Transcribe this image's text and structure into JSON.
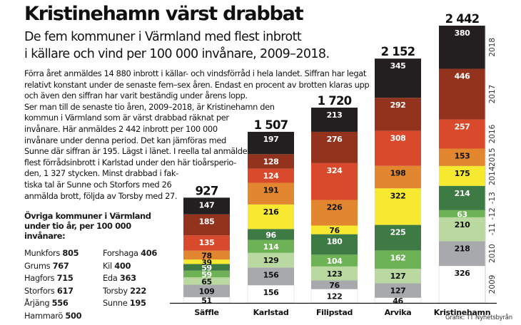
{
  "header": {
    "title": "Kristinehamn värst drabbat",
    "subtitle_lines": [
      "De fem kommuner i Värmland med flest inbrott",
      "i källare och vind per 100 000 invånare, 2009–2018."
    ]
  },
  "body_lines": [
    "Förra året anmäldes 14 880 inbrott i källar- och vindsförråd i hela landet. Siffran har legat",
    "relativt konstant under de senaste fem–sex åren. Endast en procent av brotten klaras upp",
    "och även den siffran har varit beständig under årens lopp.",
    "Ser man till de senaste tio åren, 2009–2018, är Kristinehamn den",
    "kommun i Värmland som är värst drabbad räknat per",
    "invånare. Här anmäldes 2 442 inbrott per 100 000",
    "invånare under denna period. Det kan jämföras med",
    "Sunne där siffran är 195. Lägst i länet. I reella tal anmäldes",
    "flest förrådsinbrott i Karlstad under den här tioårsperio-",
    "den, 1 327 stycken. Minst drabbad i fak-",
    "tiska tal är Sunne och Storfors med 26",
    "anmälda brott, följda av Torsby med 27."
  ],
  "others": {
    "title_lines": [
      "Övriga kommuner i Värmland",
      "under tio år, per 100 000 invånare:"
    ],
    "items": [
      {
        "name": "Munkfors",
        "value": "805"
      },
      {
        "name": "Grums",
        "value": "767"
      },
      {
        "name": "Hagfors",
        "value": "715"
      },
      {
        "name": "Storfors",
        "value": "617"
      },
      {
        "name": "Årjäng",
        "value": "556"
      },
      {
        "name": "Hammarö",
        "value": "500"
      },
      {
        "name": "Forshaga",
        "value": "406"
      },
      {
        "name": "Kil",
        "value": "400"
      },
      {
        "name": "Eda",
        "value": "363"
      },
      {
        "name": "Torsby",
        "value": "222"
      },
      {
        "name": "Sunne",
        "value": "195"
      }
    ]
  },
  "source": "Grafik: TT Nyhetsbyrån",
  "chart_data": {
    "type": "bar",
    "stacked": true,
    "title": "Kristinehamn värst drabbat",
    "ylabel": "Inbrott i källare och vind per 100 000 invånare",
    "categories": [
      "Säffle",
      "Karlstad",
      "Filipstad",
      "Arvika",
      "Kristinehamn"
    ],
    "totals": [
      "927",
      "1 507",
      "1 720",
      "2 152",
      "2 442"
    ],
    "series": [
      {
        "name": "2009",
        "axis_label": "2009",
        "color": "#ffffff",
        "label_color": "#111111",
        "values": [
          51,
          156,
          122,
          46,
          326
        ]
      },
      {
        "name": "2010",
        "axis_label": "2010",
        "color": "#a7a9ac",
        "label_color": "#111111",
        "values": [
          109,
          156,
          76,
          127,
          218
        ]
      },
      {
        "name": "2011",
        "axis_label": "-11",
        "color": "#b9d9a0",
        "label_color": "#111111",
        "values": [
          65,
          129,
          123,
          127,
          210
        ]
      },
      {
        "name": "2012",
        "axis_label": "-12",
        "color": "#6db255",
        "label_color": "#ffffff",
        "values": [
          59,
          114,
          104,
          162,
          63
        ]
      },
      {
        "name": "2013",
        "axis_label": "-13",
        "color": "#3e7a43",
        "label_color": "#ffffff",
        "values": [
          59,
          96,
          180,
          225,
          214
        ]
      },
      {
        "name": "2014",
        "axis_label": "2014",
        "color": "#f7e92f",
        "label_color": "#111111",
        "values": [
          39,
          216,
          76,
          322,
          175
        ]
      },
      {
        "name": "2015",
        "axis_label": "2015",
        "color": "#e2872f",
        "label_color": "#111111",
        "values": [
          78,
          191,
          226,
          198,
          153
        ]
      },
      {
        "name": "2016",
        "axis_label": "2016",
        "color": "#d9492b",
        "label_color": "#ffffff",
        "values": [
          135,
          124,
          324,
          308,
          257
        ]
      },
      {
        "name": "2017",
        "axis_label": "2017",
        "color": "#93331d",
        "label_color": "#ffffff",
        "values": [
          185,
          128,
          276,
          292,
          446
        ]
      },
      {
        "name": "2018",
        "axis_label": "2018",
        "color": "#231f20",
        "label_color": "#ffffff",
        "values": [
          147,
          197,
          213,
          345,
          380
        ]
      }
    ],
    "ylim": [
      0,
      2442
    ],
    "grid": false,
    "legend": "right"
  }
}
